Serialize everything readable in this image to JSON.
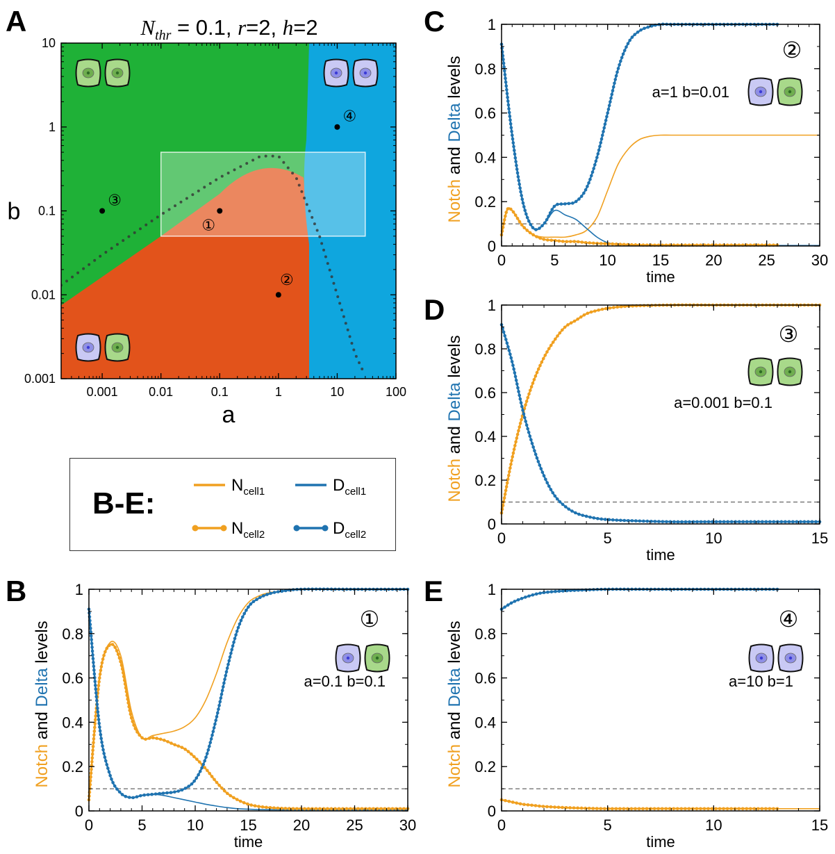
{
  "panel_letters": {
    "A": "A",
    "B": "B",
    "C": "C",
    "D": "D",
    "E": "E"
  },
  "colors": {
    "notch": "#f0a020",
    "delta": "#1f73b0",
    "green_region": "#1fb137",
    "red_region": "#e2531b",
    "blue_region": "#0fa6de",
    "dashed": "#666666"
  },
  "legend": {
    "title": "B-E:",
    "entries": [
      {
        "label": "N",
        "sub": "cell1",
        "color_key": "notch",
        "markers": false
      },
      {
        "label": "D",
        "sub": "cell1",
        "color_key": "delta",
        "markers": false
      },
      {
        "label": "N",
        "sub": "cell2",
        "color_key": "notch",
        "markers": true
      },
      {
        "label": "D",
        "sub": "cell2",
        "color_key": "delta",
        "markers": true
      }
    ]
  },
  "chart_data": [
    {
      "panel": "A",
      "type": "heatmap",
      "title": "N_thr = 0.1, r=2, h=2",
      "title_parts": {
        "N": "N",
        "thr": "thr",
        "rest": " = 0.1, ",
        "r": "r",
        "rv": "=2, ",
        "h": "h",
        "hv": "=2"
      },
      "xlabel": "a",
      "ylabel": "b",
      "xscale": "log",
      "yscale": "log",
      "xlim": [
        0.0002,
        100
      ],
      "ylim": [
        0.001,
        10
      ],
      "xticks": [
        "0.001",
        "0.01",
        "0.1",
        "1",
        "10",
        "100"
      ],
      "yticks": [
        "0.001",
        "0.01",
        "0.1",
        "1",
        "10"
      ],
      "regions": [
        {
          "name": "green",
          "cells": "both green",
          "color_key": "green_region"
        },
        {
          "name": "red",
          "cells": "blue and green",
          "color_key": "red_region"
        },
        {
          "name": "blue",
          "cells": "both blue",
          "color_key": "blue_region"
        }
      ],
      "highlight_box": {
        "a": [
          0.01,
          30
        ],
        "b": [
          0.05,
          0.5
        ]
      },
      "dotted_curve": [
        [
          0.0002,
          0.013
        ],
        [
          0.001,
          0.03
        ],
        [
          0.01,
          0.09
        ],
        [
          0.1,
          0.25
        ],
        [
          0.5,
          0.45
        ],
        [
          1,
          0.45
        ],
        [
          2,
          0.25
        ],
        [
          5,
          0.05
        ],
        [
          10,
          0.01
        ],
        [
          20,
          0.002
        ],
        [
          28,
          0.0012
        ]
      ],
      "points": [
        {
          "label": "①",
          "a": 0.1,
          "b": 0.1
        },
        {
          "label": "②",
          "a": 1,
          "b": 0.01
        },
        {
          "label": "③",
          "a": 0.001,
          "b": 0.1
        },
        {
          "label": "④",
          "a": 10,
          "b": 1
        }
      ]
    },
    {
      "panel": "B",
      "type": "line",
      "xlabel": "time",
      "ylabel_parts": [
        "Notch",
        " and ",
        "Delta",
        " levels"
      ],
      "xlim": [
        0,
        30
      ],
      "ylim": [
        0,
        1
      ],
      "xticks": [
        "0",
        "5",
        "10",
        "15",
        "20",
        "25",
        "30"
      ],
      "yticks": [
        "0",
        "0.2",
        "0.4",
        "0.6",
        "0.8",
        "1"
      ],
      "threshold": 0.1,
      "marker": "①",
      "params": "a=0.1  b=0.1",
      "cells": [
        "blue",
        "green"
      ],
      "series": [
        {
          "id": "N_cell1",
          "color_key": "notch",
          "markers": false,
          "x": [
            0,
            1,
            2,
            3,
            4,
            5,
            6,
            7,
            8,
            9,
            10,
            11,
            12,
            13,
            14,
            15,
            16,
            17,
            18,
            20,
            25,
            30
          ],
          "y": [
            0.05,
            0.6,
            0.76,
            0.7,
            0.45,
            0.33,
            0.34,
            0.35,
            0.36,
            0.38,
            0.42,
            0.5,
            0.62,
            0.76,
            0.87,
            0.94,
            0.97,
            0.985,
            0.99,
            1,
            1,
            1
          ]
        },
        {
          "id": "N_cell2",
          "color_key": "notch",
          "markers": true,
          "x": [
            0,
            1,
            2,
            3,
            4,
            5,
            6,
            7,
            8,
            9,
            10,
            11,
            12,
            13,
            14,
            15,
            16,
            17,
            18,
            20,
            25,
            30
          ],
          "y": [
            0.05,
            0.6,
            0.75,
            0.67,
            0.42,
            0.33,
            0.33,
            0.32,
            0.3,
            0.28,
            0.24,
            0.19,
            0.13,
            0.08,
            0.05,
            0.03,
            0.02,
            0.015,
            0.012,
            0.01,
            0.01,
            0.01
          ]
        },
        {
          "id": "D_cell1",
          "color_key": "delta",
          "markers": false,
          "x": [
            0,
            1,
            2,
            3,
            4,
            5,
            6,
            7,
            8,
            9,
            10,
            11,
            12,
            13,
            14,
            15,
            16,
            18,
            20,
            25,
            30
          ],
          "y": [
            0.91,
            0.38,
            0.16,
            0.08,
            0.06,
            0.07,
            0.075,
            0.07,
            0.06,
            0.05,
            0.04,
            0.03,
            0.022,
            0.015,
            0.01,
            0.008,
            0.006,
            0.005,
            0.005,
            0.005,
            0.005
          ]
        },
        {
          "id": "D_cell2",
          "color_key": "delta",
          "markers": true,
          "x": [
            0,
            1,
            2,
            3,
            4,
            5,
            6,
            7,
            8,
            9,
            10,
            11,
            12,
            13,
            14,
            15,
            16,
            17,
            18,
            20,
            25,
            30
          ],
          "y": [
            0.91,
            0.38,
            0.16,
            0.08,
            0.06,
            0.07,
            0.075,
            0.08,
            0.085,
            0.1,
            0.14,
            0.24,
            0.42,
            0.64,
            0.82,
            0.92,
            0.96,
            0.98,
            0.99,
            1,
            1,
            1
          ]
        }
      ]
    },
    {
      "panel": "C",
      "type": "line",
      "xlabel": "time",
      "ylabel_parts": [
        "Notch",
        " and ",
        "Delta",
        " levels"
      ],
      "xlim": [
        0,
        30
      ],
      "ylim": [
        0,
        1
      ],
      "xticks": [
        "0",
        "5",
        "10",
        "15",
        "20",
        "25",
        "30"
      ],
      "yticks": [
        "0",
        "0.2",
        "0.4",
        "0.6",
        "0.8",
        "1"
      ],
      "threshold": 0.1,
      "marker": "②",
      "params": "a=1  b=0.01",
      "cells": [
        "blue",
        "green"
      ],
      "series": [
        {
          "id": "N_cell1",
          "color_key": "notch",
          "markers": false,
          "x": [
            0,
            0.5,
            1,
            2,
            3,
            4,
            5,
            6,
            7,
            8,
            9,
            10,
            11,
            12,
            13,
            14,
            15,
            16,
            18,
            20,
            25,
            30
          ],
          "y": [
            0.05,
            0.16,
            0.16,
            0.09,
            0.05,
            0.04,
            0.04,
            0.04,
            0.05,
            0.07,
            0.13,
            0.25,
            0.37,
            0.44,
            0.48,
            0.495,
            0.5,
            0.5,
            0.5,
            0.5,
            0.5,
            0.5
          ]
        },
        {
          "id": "N_cell2",
          "color_key": "notch",
          "markers": true,
          "x": [
            0,
            0.5,
            1,
            2,
            3,
            4,
            5,
            6,
            7,
            8,
            9,
            10,
            11,
            12,
            14,
            16,
            18,
            20,
            26
          ],
          "y": [
            0.05,
            0.16,
            0.16,
            0.09,
            0.05,
            0.03,
            0.025,
            0.02,
            0.02,
            0.015,
            0.012,
            0.01,
            0.008,
            0.006,
            0.004,
            0.004,
            0.004,
            0.004,
            0.004
          ]
        },
        {
          "id": "D_cell1",
          "color_key": "delta",
          "markers": false,
          "x": [
            0,
            1,
            2,
            3,
            4,
            5,
            6,
            7,
            8,
            9,
            10,
            11,
            12,
            14,
            16,
            20,
            25,
            30
          ],
          "y": [
            0.91,
            0.5,
            0.2,
            0.08,
            0.1,
            0.16,
            0.14,
            0.12,
            0.08,
            0.04,
            0.015,
            0.008,
            0.005,
            0.003,
            0.002,
            0.002,
            0.002,
            0.002
          ]
        },
        {
          "id": "D_cell2",
          "color_key": "delta",
          "markers": true,
          "x": [
            0,
            1,
            2,
            3,
            4,
            5,
            6,
            7,
            8,
            9,
            10,
            11,
            12,
            13,
            14,
            15,
            16,
            18,
            20,
            26
          ],
          "y": [
            0.91,
            0.5,
            0.2,
            0.08,
            0.1,
            0.18,
            0.19,
            0.2,
            0.26,
            0.4,
            0.6,
            0.8,
            0.92,
            0.97,
            0.99,
            1,
            1,
            1,
            1,
            1
          ]
        }
      ]
    },
    {
      "panel": "D",
      "type": "line",
      "xlabel": "time",
      "ylabel_parts": [
        "Notch",
        " and ",
        "Delta",
        " levels"
      ],
      "xlim": [
        0,
        15
      ],
      "ylim": [
        0,
        1
      ],
      "xticks": [
        "0",
        "5",
        "10",
        "15"
      ],
      "yticks": [
        "0",
        "0.2",
        "0.4",
        "0.6",
        "0.8",
        "1"
      ],
      "threshold": 0.1,
      "marker": "③",
      "params": "a=0.001  b=0.1",
      "cells": [
        "green",
        "green"
      ],
      "series": [
        {
          "id": "N_cell1",
          "color_key": "notch",
          "markers": false,
          "x": [
            0,
            0.5,
            1,
            1.5,
            2,
            2.5,
            3,
            3.5,
            4,
            4.5,
            5,
            6,
            8,
            10,
            15
          ],
          "y": [
            0.05,
            0.3,
            0.5,
            0.65,
            0.76,
            0.84,
            0.9,
            0.93,
            0.96,
            0.975,
            0.985,
            0.995,
            1,
            1,
            1
          ]
        },
        {
          "id": "N_cell2",
          "color_key": "notch",
          "markers": true,
          "x": [
            0,
            0.5,
            1,
            1.5,
            2,
            2.5,
            3,
            3.5,
            4,
            4.5,
            5,
            6,
            8,
            10,
            15
          ],
          "y": [
            0.05,
            0.3,
            0.5,
            0.65,
            0.76,
            0.84,
            0.9,
            0.93,
            0.96,
            0.975,
            0.985,
            0.995,
            1,
            1,
            1
          ]
        },
        {
          "id": "D_cell1",
          "color_key": "delta",
          "markers": false,
          "x": [
            0,
            0.5,
            1,
            1.5,
            2,
            2.5,
            3,
            3.5,
            4,
            4.5,
            5,
            6,
            8,
            10,
            15
          ],
          "y": [
            0.91,
            0.74,
            0.52,
            0.35,
            0.22,
            0.13,
            0.08,
            0.05,
            0.035,
            0.025,
            0.02,
            0.015,
            0.01,
            0.01,
            0.01
          ]
        },
        {
          "id": "D_cell2",
          "color_key": "delta",
          "markers": true,
          "x": [
            0,
            0.5,
            1,
            1.5,
            2,
            2.5,
            3,
            3.5,
            4,
            4.5,
            5,
            6,
            8,
            10,
            15
          ],
          "y": [
            0.91,
            0.74,
            0.52,
            0.35,
            0.22,
            0.13,
            0.08,
            0.05,
            0.035,
            0.025,
            0.02,
            0.015,
            0.01,
            0.01,
            0.01
          ]
        }
      ]
    },
    {
      "panel": "E",
      "type": "line",
      "xlabel": "time",
      "ylabel_parts": [
        "Notch",
        " and ",
        "Delta",
        " levels"
      ],
      "xlim": [
        0,
        15
      ],
      "ylim": [
        0,
        1
      ],
      "xticks": [
        "0",
        "5",
        "10",
        "15"
      ],
      "yticks": [
        "0",
        "0.2",
        "0.4",
        "0.6",
        "0.8",
        "1"
      ],
      "threshold": 0.1,
      "marker": "④",
      "params": "a=10  b=1",
      "cells": [
        "blue",
        "blue"
      ],
      "series": [
        {
          "id": "N_cell1",
          "color_key": "notch",
          "markers": false,
          "x": [
            0,
            0.5,
            1,
            1.5,
            2,
            3,
            4,
            5,
            7,
            10,
            13,
            15
          ],
          "y": [
            0.05,
            0.04,
            0.03,
            0.025,
            0.02,
            0.015,
            0.012,
            0.01,
            0.01,
            0.01,
            0.01,
            0.01
          ]
        },
        {
          "id": "N_cell2",
          "color_key": "notch",
          "markers": true,
          "x": [
            0,
            0.5,
            1,
            1.5,
            2,
            3,
            4,
            5,
            7,
            10,
            13
          ],
          "y": [
            0.05,
            0.04,
            0.03,
            0.025,
            0.02,
            0.015,
            0.012,
            0.01,
            0.01,
            0.01,
            0.01
          ]
        },
        {
          "id": "D_cell1",
          "color_key": "delta",
          "markers": false,
          "x": [
            0,
            0.5,
            1,
            1.5,
            2,
            3,
            4,
            5,
            7,
            10,
            13,
            15
          ],
          "y": [
            0.91,
            0.94,
            0.96,
            0.975,
            0.985,
            0.993,
            0.997,
            1,
            1,
            1,
            1,
            1
          ]
        },
        {
          "id": "D_cell2",
          "color_key": "delta",
          "markers": true,
          "x": [
            0,
            0.5,
            1,
            1.5,
            2,
            3,
            4,
            5,
            7,
            10,
            13
          ],
          "y": [
            0.91,
            0.94,
            0.96,
            0.975,
            0.985,
            0.993,
            0.997,
            1,
            1,
            1,
            1
          ]
        }
      ]
    }
  ]
}
